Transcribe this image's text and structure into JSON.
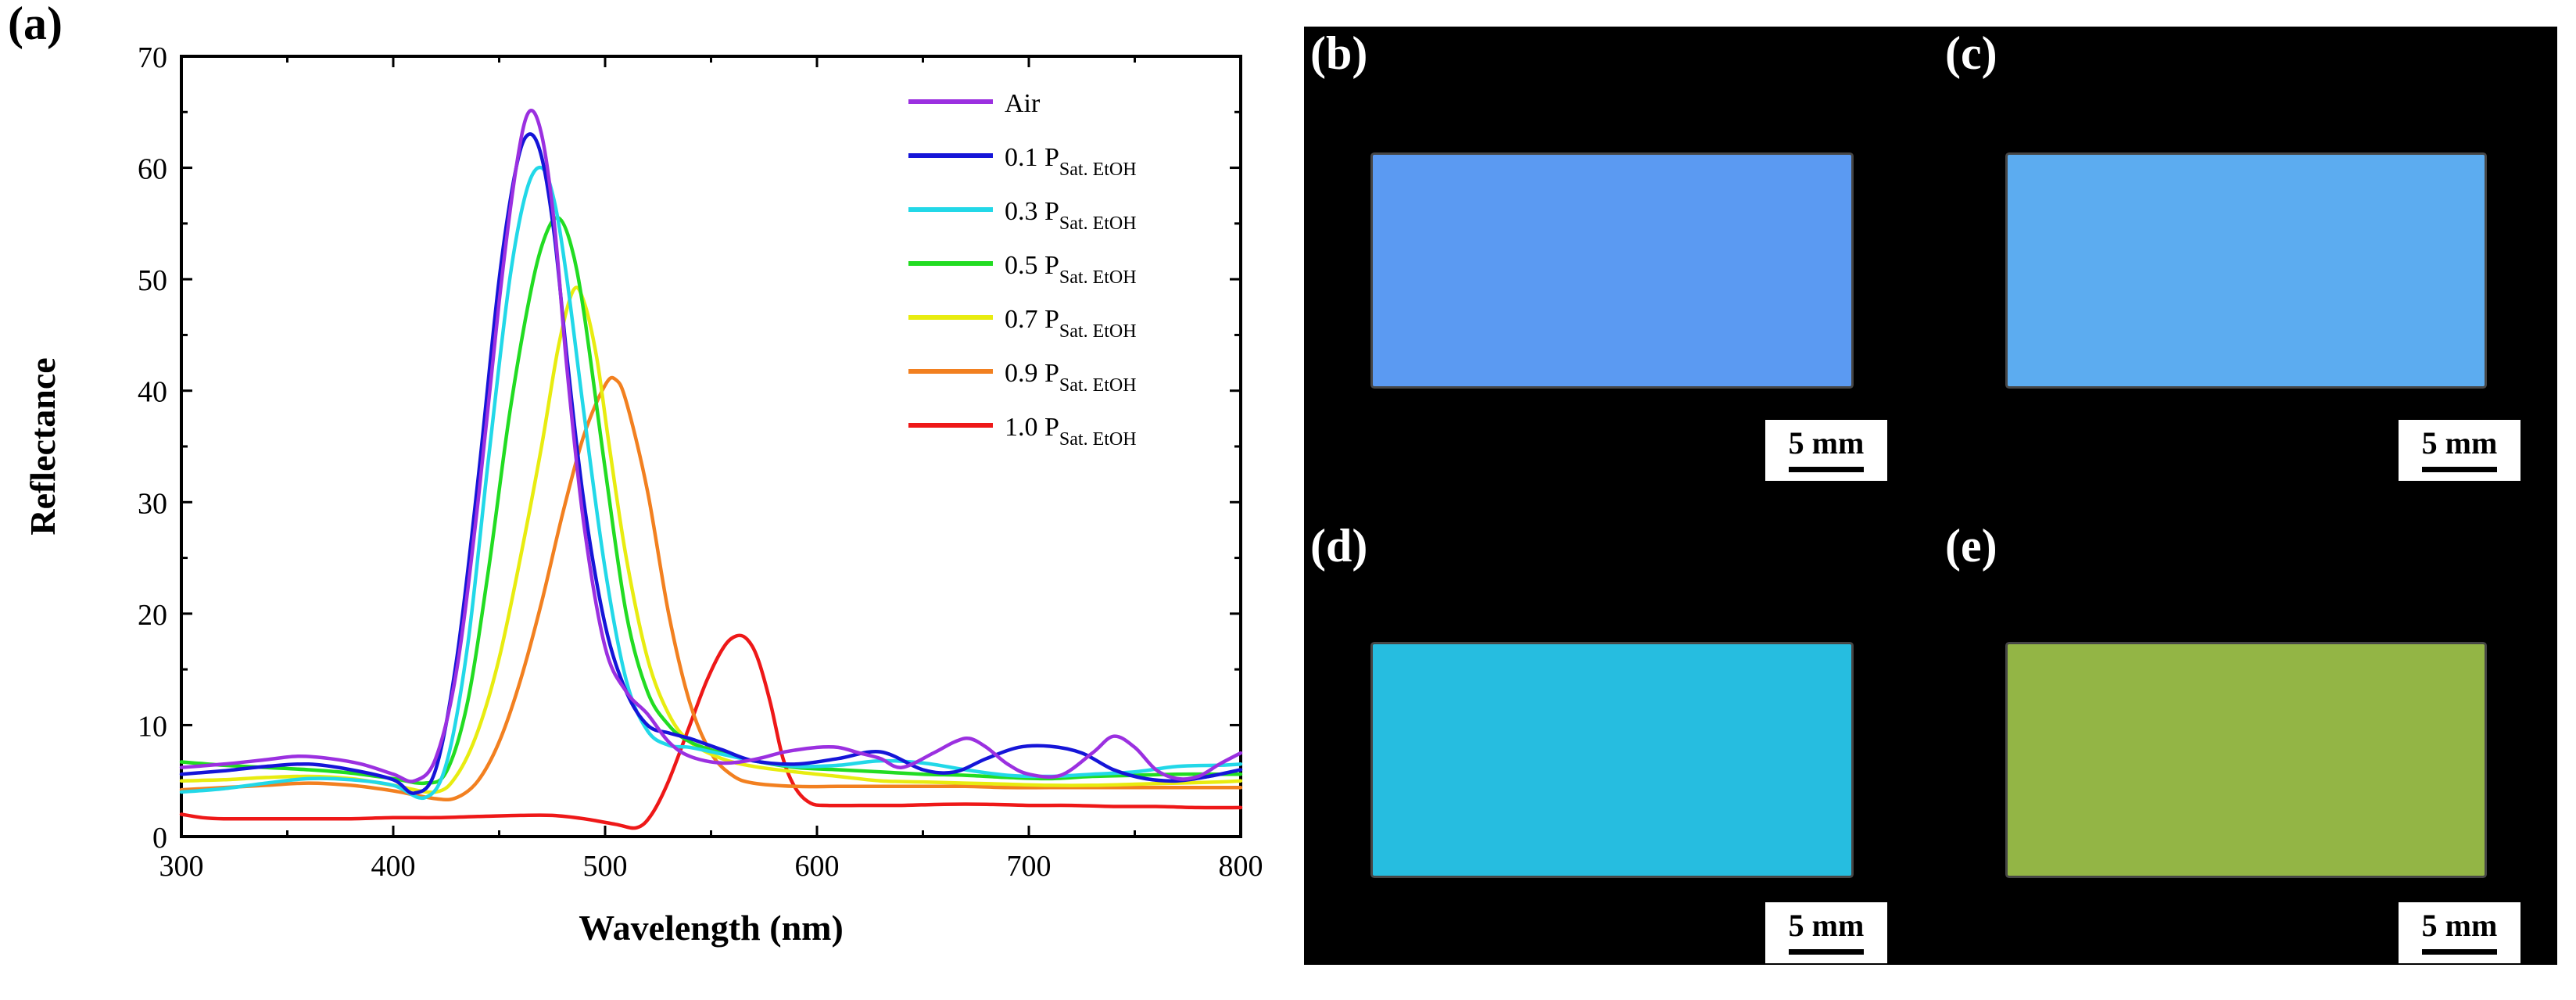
{
  "panel_a_label": "(a)",
  "chart_data": {
    "type": "line",
    "xlabel": "Wavelength (nm)",
    "ylabel": "Reflectance",
    "xlim": [
      300,
      800
    ],
    "ylim": [
      0,
      70
    ],
    "xticks": [
      300,
      400,
      500,
      600,
      700,
      800
    ],
    "yticks": [
      0,
      10,
      20,
      30,
      40,
      50,
      60,
      70
    ],
    "grid": false,
    "legend_position": "top-right",
    "series": [
      {
        "name": "Air",
        "sub": "",
        "color": "#9b30e0",
        "x": [
          300,
          320,
          340,
          355,
          370,
          385,
          400,
          410,
          420,
          430,
          440,
          450,
          458,
          464,
          470,
          476,
          482,
          490,
          500,
          510,
          520,
          530,
          540,
          555,
          570,
          585,
          600,
          610,
          620,
          630,
          640,
          655,
          665,
          672,
          680,
          690,
          700,
          715,
          730,
          740,
          750,
          760,
          770,
          780,
          790,
          800
        ],
        "y": [
          6.2,
          6.5,
          6.9,
          7.2,
          7.0,
          6.5,
          5.6,
          5.0,
          7.0,
          15,
          30,
          48,
          60,
          65,
          63,
          55,
          42,
          28,
          17,
          13,
          11,
          8.5,
          7.2,
          6.6,
          6.9,
          7.6,
          8.0,
          8.0,
          7.5,
          7.0,
          6.2,
          7.5,
          8.5,
          8.8,
          8.0,
          6.5,
          5.6,
          5.5,
          7.5,
          9.0,
          8.0,
          6.0,
          5.2,
          5.4,
          6.5,
          7.5
        ]
      },
      {
        "name": "0.1 P",
        "sub": "Sat. EtOH",
        "color": "#1515d8",
        "x": [
          300,
          320,
          340,
          360,
          380,
          400,
          410,
          420,
          430,
          440,
          450,
          458,
          464,
          470,
          476,
          482,
          490,
          500,
          510,
          520,
          530,
          540,
          555,
          570,
          590,
          610,
          630,
          650,
          665,
          680,
          695,
          710,
          725,
          740,
          755,
          770,
          785,
          800
        ],
        "y": [
          5.6,
          5.9,
          6.3,
          6.5,
          6.0,
          5.1,
          3.9,
          6.0,
          16,
          32,
          50,
          60,
          63,
          61,
          54,
          43,
          30,
          19,
          13,
          10,
          9.3,
          8.8,
          7.8,
          6.8,
          6.5,
          7.0,
          7.6,
          6.0,
          5.8,
          7.0,
          8.0,
          8.1,
          7.5,
          6.0,
          5.2,
          5.0,
          5.4,
          6.0
        ]
      },
      {
        "name": "0.3 P",
        "sub": "Sat. EtOH",
        "color": "#22d8e8",
        "x": [
          300,
          320,
          340,
          360,
          380,
          400,
          415,
          425,
          435,
          445,
          455,
          463,
          470,
          476,
          482,
          490,
          500,
          510,
          520,
          530,
          540,
          555,
          570,
          590,
          610,
          630,
          650,
          670,
          690,
          710,
          730,
          750,
          770,
          790,
          800
        ],
        "y": [
          4.0,
          4.3,
          4.8,
          5.2,
          5.1,
          4.6,
          3.5,
          6.5,
          17,
          34,
          50,
          58,
          60,
          57,
          50,
          38,
          24,
          14,
          9.5,
          8.2,
          8.0,
          7.4,
          6.8,
          6.3,
          6.4,
          6.8,
          6.6,
          6.0,
          5.5,
          5.4,
          5.6,
          5.8,
          6.3,
          6.4,
          6.5
        ]
      },
      {
        "name": "0.5 P",
        "sub": "Sat. EtOH",
        "color": "#22dc22",
        "x": [
          300,
          320,
          340,
          360,
          380,
          400,
          415,
          425,
          435,
          445,
          455,
          465,
          472,
          478,
          484,
          490,
          500,
          510,
          520,
          530,
          540,
          555,
          570,
          590,
          610,
          630,
          650,
          670,
          690,
          710,
          730,
          750,
          770,
          790,
          800
        ],
        "y": [
          6.7,
          6.4,
          6.2,
          6.0,
          5.7,
          5.2,
          4.8,
          5.8,
          12,
          24,
          38,
          49,
          54,
          55.5,
          53,
          47,
          33,
          20,
          13,
          10,
          8.5,
          7.5,
          6.8,
          6.2,
          6.0,
          5.8,
          5.6,
          5.5,
          5.3,
          5.2,
          5.4,
          5.5,
          5.6,
          5.6,
          5.6
        ]
      },
      {
        "name": "0.7 P",
        "sub": "Sat. EtOH",
        "color": "#e8ec10",
        "x": [
          300,
          320,
          340,
          360,
          380,
          400,
          420,
          430,
          440,
          450,
          460,
          470,
          478,
          485,
          490,
          496,
          502,
          510,
          520,
          530,
          540,
          555,
          570,
          590,
          610,
          630,
          650,
          670,
          690,
          710,
          730,
          750,
          770,
          790,
          800
        ],
        "y": [
          5.0,
          5.1,
          5.3,
          5.4,
          5.2,
          4.6,
          4.0,
          5.5,
          9.5,
          16,
          25,
          35,
          44,
          49,
          48,
          43,
          35,
          25,
          16,
          11,
          8.5,
          7.0,
          6.3,
          5.8,
          5.4,
          5.0,
          4.9,
          4.8,
          4.7,
          4.6,
          4.6,
          4.7,
          4.8,
          4.9,
          5.0
        ]
      },
      {
        "name": "0.9 P",
        "sub": "Sat. EtOH",
        "color": "#f28020",
        "x": [
          300,
          320,
          340,
          360,
          380,
          400,
          420,
          430,
          440,
          450,
          460,
          470,
          480,
          490,
          500,
          505,
          510,
          520,
          530,
          540,
          550,
          560,
          570,
          590,
          610,
          630,
          650,
          670,
          690,
          710,
          730,
          750,
          770,
          790,
          800
        ],
        "y": [
          4.2,
          4.4,
          4.6,
          4.8,
          4.6,
          4.1,
          3.4,
          3.5,
          5.0,
          8.5,
          14,
          21,
          29,
          36,
          40.5,
          41,
          39,
          31,
          20,
          12,
          7.5,
          5.5,
          4.8,
          4.5,
          4.5,
          4.5,
          4.5,
          4.5,
          4.4,
          4.4,
          4.4,
          4.4,
          4.4,
          4.4,
          4.4
        ]
      },
      {
        "name": "1.0 P",
        "sub": "Sat. EtOH",
        "color": "#ee1818",
        "x": [
          300,
          310,
          320,
          340,
          360,
          380,
          400,
          420,
          440,
          460,
          475,
          490,
          505,
          515,
          522,
          530,
          540,
          548,
          556,
          562,
          567,
          572,
          578,
          584,
          590,
          597,
          605,
          620,
          640,
          660,
          680,
          700,
          720,
          740,
          760,
          780,
          800
        ],
        "y": [
          2.0,
          1.7,
          1.6,
          1.6,
          1.6,
          1.6,
          1.7,
          1.7,
          1.8,
          1.9,
          1.9,
          1.6,
          1.1,
          0.8,
          2.0,
          5.0,
          10,
          14,
          17,
          18,
          17.7,
          16,
          12,
          7,
          4.3,
          3.0,
          2.8,
          2.8,
          2.8,
          2.9,
          2.9,
          2.8,
          2.8,
          2.7,
          2.7,
          2.6,
          2.6
        ]
      }
    ]
  },
  "photo_panels": [
    {
      "label": "(b)",
      "color": "#5b9af2",
      "scale": "5 mm"
    },
    {
      "label": "(c)",
      "color": "#5cacf0",
      "scale": "5 mm"
    },
    {
      "label": "(d)",
      "color": "#26bde0",
      "scale": "5 mm"
    },
    {
      "label": "(e)",
      "color": "#93b545",
      "scale": "5 mm"
    }
  ]
}
